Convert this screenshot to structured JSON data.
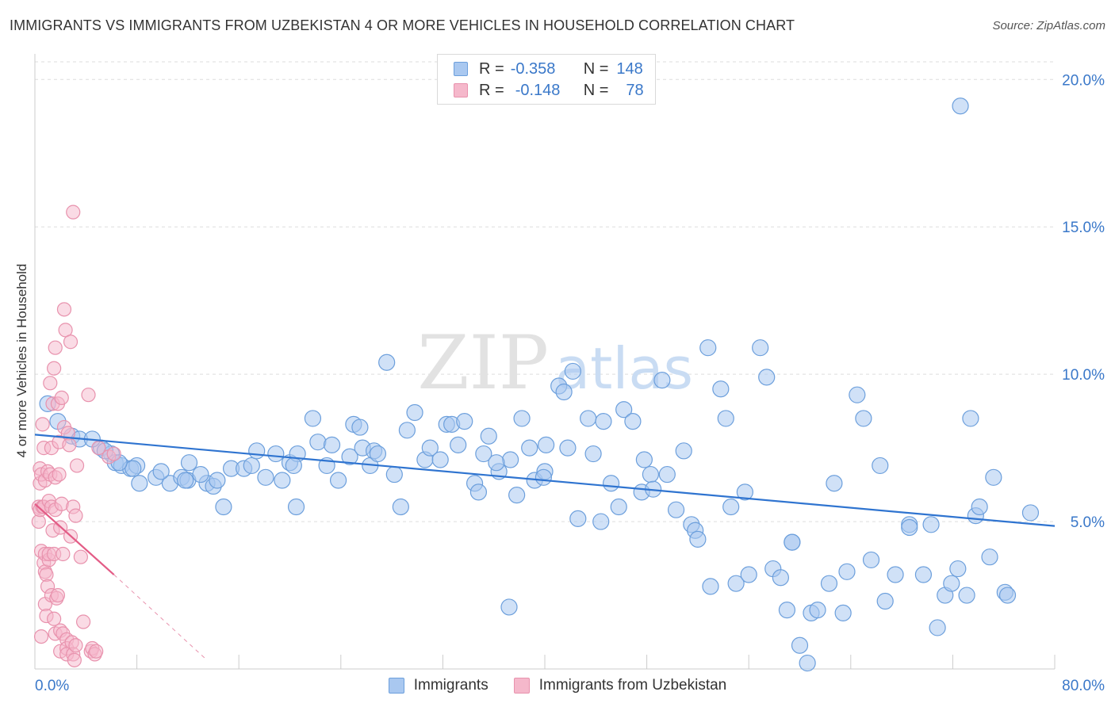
{
  "header": {
    "title": "IMMIGRANTS VS IMMIGRANTS FROM UZBEKISTAN 4 OR MORE VEHICLES IN HOUSEHOLD CORRELATION CHART",
    "source": "Source: ZipAtlas.com"
  },
  "legend_top": {
    "rows": [
      {
        "r_label": "R =",
        "r_value": "-0.358",
        "n_label": "N =",
        "n_value": "148",
        "color": "#a9c8f0"
      },
      {
        "r_label": "R =",
        "r_value": "-0.148",
        "n_label": "N =",
        "n_value": "78",
        "color": "#f5b8cb"
      }
    ]
  },
  "watermark": {
    "zip": "ZIP",
    "atlas": "atlas"
  },
  "colors": {
    "blue_fill": "#a9c8f0",
    "blue_stroke": "#6c9fdc",
    "blue_line": "#2f74d0",
    "pink_fill": "#f5b8cb",
    "pink_stroke": "#e892ad",
    "pink_line": "#e35c86",
    "grid": "#dddddd",
    "tick_label": "#3a78c9"
  },
  "chart_data": {
    "type": "scatter",
    "title": "IMMIGRANTS VS IMMIGRANTS FROM UZBEKISTAN 4 OR MORE VEHICLES IN HOUSEHOLD CORRELATION CHART",
    "xlabel": "",
    "ylabel": "4 or more Vehicles in Household",
    "xlim": [
      0,
      80
    ],
    "ylim": [
      0,
      20.6
    ],
    "x_tick_labels": [
      "0.0%",
      "80.0%"
    ],
    "y_ticks": [
      5,
      10,
      15,
      20
    ],
    "y_tick_labels": [
      "5.0%",
      "10.0%",
      "15.0%",
      "20.0%"
    ],
    "grid": "horizontal dashed",
    "legend_placement": "bottom",
    "series": [
      {
        "name": "Immigrants",
        "r": -0.358,
        "n": 148,
        "trend": {
          "x": [
            0,
            80
          ],
          "y": [
            7.95,
            4.85
          ]
        },
        "points": [
          [
            1.0,
            9.0
          ],
          [
            1.8,
            8.4
          ],
          [
            2.9,
            7.9
          ],
          [
            3.5,
            7.8
          ],
          [
            5.2,
            7.5
          ],
          [
            6.0,
            7.3
          ],
          [
            6.3,
            7.0
          ],
          [
            6.8,
            6.9
          ],
          [
            7.5,
            6.8
          ],
          [
            8.0,
            6.9
          ],
          [
            8.2,
            6.3
          ],
          [
            9.5,
            6.5
          ],
          [
            10.6,
            6.3
          ],
          [
            11.5,
            6.5
          ],
          [
            12.0,
            6.4
          ],
          [
            12.1,
            7.0
          ],
          [
            13.5,
            6.3
          ],
          [
            14.0,
            6.2
          ],
          [
            14.3,
            6.4
          ],
          [
            14.8,
            5.5
          ],
          [
            15.4,
            6.8
          ],
          [
            16.4,
            6.8
          ],
          [
            17.0,
            6.9
          ],
          [
            17.4,
            7.4
          ],
          [
            18.1,
            6.5
          ],
          [
            18.9,
            7.3
          ],
          [
            19.4,
            6.4
          ],
          [
            20.0,
            7.0
          ],
          [
            20.5,
            5.5
          ],
          [
            20.6,
            7.3
          ],
          [
            21.8,
            8.5
          ],
          [
            22.2,
            7.7
          ],
          [
            22.9,
            6.9
          ],
          [
            23.3,
            7.6
          ],
          [
            23.8,
            6.4
          ],
          [
            24.7,
            7.2
          ],
          [
            25.0,
            8.3
          ],
          [
            25.5,
            8.2
          ],
          [
            25.7,
            7.5
          ],
          [
            26.3,
            6.9
          ],
          [
            26.6,
            7.4
          ],
          [
            27.6,
            10.4
          ],
          [
            28.2,
            6.6
          ],
          [
            28.7,
            5.5
          ],
          [
            29.2,
            8.1
          ],
          [
            29.8,
            8.7
          ],
          [
            30.6,
            7.1
          ],
          [
            31.0,
            7.5
          ],
          [
            31.8,
            7.1
          ],
          [
            32.3,
            8.3
          ],
          [
            32.7,
            8.3
          ],
          [
            33.2,
            7.6
          ],
          [
            33.7,
            8.4
          ],
          [
            34.5,
            6.3
          ],
          [
            34.8,
            6.0
          ],
          [
            35.2,
            7.3
          ],
          [
            35.6,
            7.9
          ],
          [
            36.4,
            6.7
          ],
          [
            37.2,
            2.1
          ],
          [
            37.3,
            7.1
          ],
          [
            37.8,
            5.9
          ],
          [
            38.2,
            8.5
          ],
          [
            38.8,
            7.5
          ],
          [
            39.2,
            6.4
          ],
          [
            40.0,
            6.7
          ],
          [
            40.1,
            7.6
          ],
          [
            41.1,
            9.6
          ],
          [
            41.5,
            9.4
          ],
          [
            41.8,
            7.5
          ],
          [
            42.2,
            10.1
          ],
          [
            42.6,
            5.1
          ],
          [
            43.4,
            8.5
          ],
          [
            43.8,
            7.3
          ],
          [
            44.6,
            8.4
          ],
          [
            45.2,
            6.3
          ],
          [
            45.8,
            5.5
          ],
          [
            46.2,
            8.8
          ],
          [
            46.9,
            8.4
          ],
          [
            47.6,
            6.0
          ],
          [
            47.8,
            7.1
          ],
          [
            48.3,
            6.6
          ],
          [
            48.5,
            6.1
          ],
          [
            49.2,
            9.8
          ],
          [
            49.6,
            6.6
          ],
          [
            50.3,
            5.4
          ],
          [
            50.9,
            7.4
          ],
          [
            51.5,
            4.9
          ],
          [
            51.8,
            4.7
          ],
          [
            52.0,
            4.4
          ],
          [
            52.8,
            10.9
          ],
          [
            53.0,
            2.8
          ],
          [
            53.8,
            9.5
          ],
          [
            54.2,
            8.5
          ],
          [
            54.6,
            5.5
          ],
          [
            55.0,
            2.9
          ],
          [
            55.7,
            6.0
          ],
          [
            56.0,
            3.2
          ],
          [
            56.9,
            10.9
          ],
          [
            57.4,
            9.9
          ],
          [
            57.9,
            3.4
          ],
          [
            58.5,
            3.1
          ],
          [
            59.0,
            2.0
          ],
          [
            59.4,
            4.3
          ],
          [
            60.0,
            0.8
          ],
          [
            60.6,
            0.2
          ],
          [
            60.9,
            1.9
          ],
          [
            61.4,
            2.0
          ],
          [
            62.3,
            2.9
          ],
          [
            62.7,
            6.3
          ],
          [
            63.4,
            1.9
          ],
          [
            63.7,
            3.3
          ],
          [
            64.5,
            9.3
          ],
          [
            65.0,
            8.5
          ],
          [
            65.6,
            3.7
          ],
          [
            66.3,
            6.9
          ],
          [
            66.7,
            2.3
          ],
          [
            67.5,
            3.2
          ],
          [
            68.6,
            4.9
          ],
          [
            69.7,
            3.2
          ],
          [
            70.3,
            4.9
          ],
          [
            70.8,
            1.4
          ],
          [
            71.4,
            2.5
          ],
          [
            71.9,
            2.9
          ],
          [
            72.4,
            3.4
          ],
          [
            72.6,
            19.1
          ],
          [
            73.1,
            2.5
          ],
          [
            73.4,
            8.5
          ],
          [
            73.8,
            5.2
          ],
          [
            74.1,
            5.5
          ],
          [
            74.9,
            3.8
          ],
          [
            75.2,
            6.5
          ],
          [
            76.1,
            2.6
          ],
          [
            78.1,
            5.3
          ],
          [
            7.7,
            6.8
          ],
          [
            9.9,
            6.7
          ],
          [
            13.0,
            6.6
          ],
          [
            20.3,
            6.9
          ],
          [
            26.9,
            7.3
          ],
          [
            39.9,
            6.5
          ],
          [
            44.4,
            5.0
          ],
          [
            59.4,
            4.3
          ],
          [
            68.6,
            4.8
          ],
          [
            76.3,
            2.5
          ],
          [
            4.5,
            7.8
          ],
          [
            5.5,
            7.4
          ],
          [
            6.6,
            7.0
          ],
          [
            11.8,
            6.4
          ],
          [
            36.2,
            7.0
          ]
        ]
      },
      {
        "name": "Immigrants from Uzbekistan",
        "r": -0.148,
        "n": 78,
        "trend": {
          "x": [
            0,
            6.2
          ],
          "y": [
            5.6,
            3.2
          ]
        },
        "trend_dashed": {
          "x": [
            6.2,
            13.5
          ],
          "y": [
            3.2,
            0.3
          ]
        },
        "points": [
          [
            0.3,
            5.5
          ],
          [
            0.3,
            5.0
          ],
          [
            0.4,
            6.3
          ],
          [
            0.4,
            5.4
          ],
          [
            0.4,
            6.8
          ],
          [
            0.5,
            4.0
          ],
          [
            0.5,
            6.6
          ],
          [
            0.5,
            1.1
          ],
          [
            0.6,
            8.3
          ],
          [
            0.6,
            5.5
          ],
          [
            0.7,
            3.6
          ],
          [
            0.7,
            7.5
          ],
          [
            0.7,
            5.5
          ],
          [
            0.8,
            3.9
          ],
          [
            0.8,
            3.3
          ],
          [
            0.8,
            6.4
          ],
          [
            0.8,
            2.2
          ],
          [
            0.9,
            3.2
          ],
          [
            0.9,
            1.8
          ],
          [
            1.0,
            2.8
          ],
          [
            1.0,
            6.7
          ],
          [
            1.1,
            3.7
          ],
          [
            1.1,
            5.7
          ],
          [
            1.1,
            3.9
          ],
          [
            1.2,
            9.7
          ],
          [
            1.2,
            6.6
          ],
          [
            1.3,
            7.5
          ],
          [
            1.3,
            5.5
          ],
          [
            1.3,
            2.5
          ],
          [
            1.4,
            9.0
          ],
          [
            1.4,
            4.7
          ],
          [
            1.5,
            3.9
          ],
          [
            1.5,
            1.7
          ],
          [
            1.5,
            10.2
          ],
          [
            1.6,
            5.4
          ],
          [
            1.6,
            10.9
          ],
          [
            1.6,
            6.5
          ],
          [
            1.6,
            1.2
          ],
          [
            1.7,
            2.4
          ],
          [
            1.8,
            2.5
          ],
          [
            1.8,
            9.0
          ],
          [
            1.9,
            7.7
          ],
          [
            2.0,
            4.8
          ],
          [
            2.0,
            0.6
          ],
          [
            2.0,
            1.3
          ],
          [
            2.1,
            5.6
          ],
          [
            2.1,
            9.2
          ],
          [
            2.2,
            1.2
          ],
          [
            2.2,
            3.9
          ],
          [
            2.3,
            12.2
          ],
          [
            2.3,
            8.2
          ],
          [
            2.4,
            11.5
          ],
          [
            2.5,
            1.0
          ],
          [
            2.5,
            0.7
          ],
          [
            2.5,
            0.5
          ],
          [
            2.6,
            8.0
          ],
          [
            2.7,
            7.6
          ],
          [
            2.8,
            11.1
          ],
          [
            2.8,
            4.5
          ],
          [
            2.9,
            0.9
          ],
          [
            3.0,
            15.5
          ],
          [
            3.0,
            0.5
          ],
          [
            3.0,
            5.5
          ],
          [
            3.1,
            0.3
          ],
          [
            3.2,
            5.2
          ],
          [
            3.2,
            0.8
          ],
          [
            3.3,
            6.9
          ],
          [
            3.6,
            3.8
          ],
          [
            3.8,
            1.6
          ],
          [
            4.2,
            9.3
          ],
          [
            4.4,
            0.6
          ],
          [
            4.5,
            0.7
          ],
          [
            4.7,
            0.5
          ],
          [
            4.8,
            0.6
          ],
          [
            5.0,
            7.5
          ],
          [
            5.8,
            7.2
          ],
          [
            6.2,
            7.3
          ],
          [
            1.9,
            6.6
          ]
        ]
      }
    ]
  }
}
